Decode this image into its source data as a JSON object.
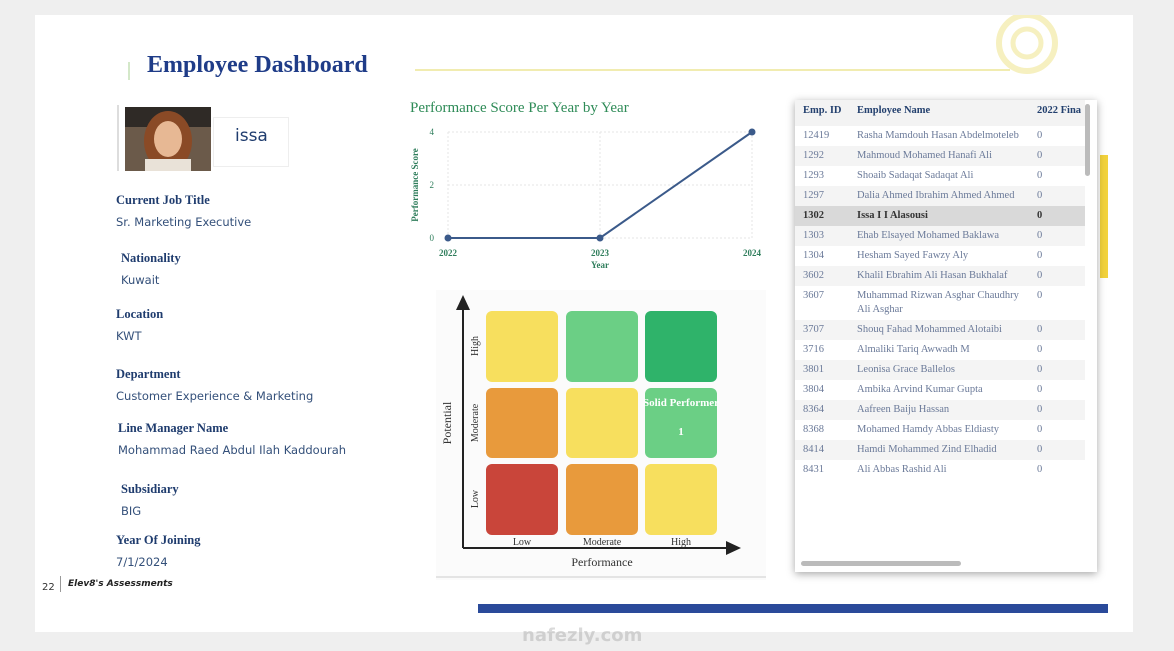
{
  "header": {
    "title": "Employee Dashboard"
  },
  "profile": {
    "name": "issa",
    "fields": [
      {
        "label": "Current Job Title",
        "value": "Sr. Marketing Executive"
      },
      {
        "label": "Nationality",
        "value": "Kuwait"
      },
      {
        "label": "Location",
        "value": "KWT"
      },
      {
        "label": "Department",
        "value": "Customer Experience & Marketing"
      },
      {
        "label": "Line Manager Name",
        "value": "Mohammad Raed Abdul Ilah Kaddourah"
      },
      {
        "label": "Subsidiary",
        "value": "BIG"
      },
      {
        "label": "Year Of Joining",
        "value": "7/1/2024"
      }
    ]
  },
  "chart_data": {
    "type": "line",
    "title": "Performance Score Per Year by Year",
    "x_label": "Year",
    "y_label": "Performance Score",
    "categories": [
      "2022",
      "2023",
      "2024"
    ],
    "values": [
      0,
      0,
      4
    ],
    "ylim": [
      0,
      4
    ],
    "yticks": [
      0,
      2,
      4
    ],
    "grid": true,
    "color": "#3b5a8a"
  },
  "matrix": {
    "y_label": "Potential",
    "x_label": "Performance",
    "rows": [
      "High",
      "Moderate",
      "Low"
    ],
    "cols": [
      "Low",
      "Moderate",
      "High"
    ],
    "highlight_title": "Solid Performer",
    "highlight_count": "1"
  },
  "table": {
    "columns": [
      "Emp. ID",
      "Employee Name",
      "2022 Fina"
    ],
    "selected_row": 4,
    "rows": [
      [
        "12419",
        "Rasha Mamdouh Hasan Abdelmoteleb",
        "0"
      ],
      [
        "1292",
        "Mahmoud Mohamed Hanafi Ali",
        "0"
      ],
      [
        "1293",
        "Shoaib Sadaqat Sadaqat Ali",
        "0"
      ],
      [
        "1297",
        "Dalia Ahmed Ibrahim Ahmed Ahmed",
        "0"
      ],
      [
        "1302",
        "Issa I I Alasousi",
        "0"
      ],
      [
        "1303",
        "Ehab Elsayed Mohamed Baklawa",
        "0"
      ],
      [
        "1304",
        "Hesham Sayed Fawzy Aly",
        "0"
      ],
      [
        "3602",
        "Khalil Ebrahim Ali Hasan Bukhalaf",
        "0"
      ],
      [
        "3607",
        "Muhammad Rizwan Asghar Chaudhry Ali Asghar",
        "0"
      ],
      [
        "3707",
        "Shouq Fahad Mohammed Alotaibi",
        "0"
      ],
      [
        "3716",
        "Almaliki Tariq Awwadh M",
        "0"
      ],
      [
        "3801",
        "Leonisa Grace Ballelos",
        "0"
      ],
      [
        "3804",
        "Ambika Arvind Kumar Gupta",
        "0"
      ],
      [
        "8364",
        "Aafreen Baiju Hassan",
        "0"
      ],
      [
        "8368",
        "Mohamed Hamdy Abbas Eldiasty",
        "0"
      ],
      [
        "8414",
        "Hamdi Mohammed Zind Elhadid",
        "0"
      ],
      [
        "8431",
        "Ali Abbas Rashid Ali",
        "0"
      ]
    ]
  },
  "footer": {
    "page": "22",
    "brand": "Elev8's Assessments",
    "watermark": "nafezly.com"
  }
}
